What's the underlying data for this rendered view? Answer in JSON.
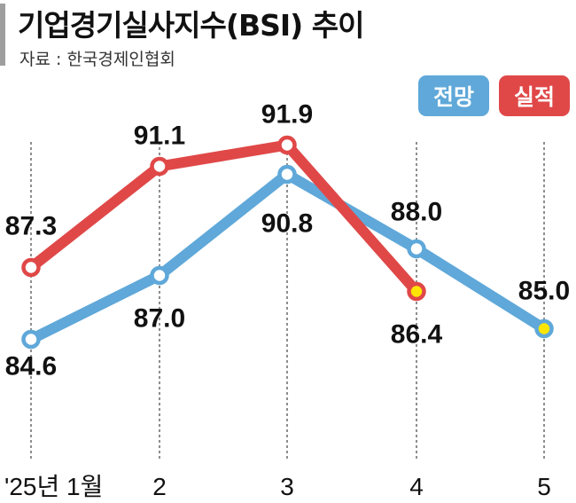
{
  "title": "기업경기실사지수(BSI) 추이",
  "source": "자료 : 한국경제인협회",
  "colors": {
    "forecast": "#5fa8d9",
    "actual": "#e04848",
    "highlight": "#ffe600"
  },
  "chart_data": {
    "type": "line",
    "title": "기업경기실사지수(BSI) 추이",
    "categories": [
      "'25년 1월",
      "2",
      "3",
      "4",
      "5"
    ],
    "series": [
      {
        "name": "전망",
        "values": [
          84.6,
          87.0,
          90.8,
          88.0,
          85.0
        ]
      },
      {
        "name": "실적",
        "values": [
          87.3,
          91.1,
          91.9,
          86.4,
          null
        ]
      }
    ],
    "value_labels": {
      "전망": [
        "84.6",
        "87.0",
        "90.8",
        "88.0",
        "85.0"
      ],
      "실적": [
        "87.3",
        "91.1",
        "91.9",
        "86.4",
        ""
      ]
    },
    "ylim": [
      80,
      94
    ],
    "grid": "vertical dashed lines at each month",
    "legend": "top-right",
    "xlabel": "",
    "ylabel": ""
  }
}
